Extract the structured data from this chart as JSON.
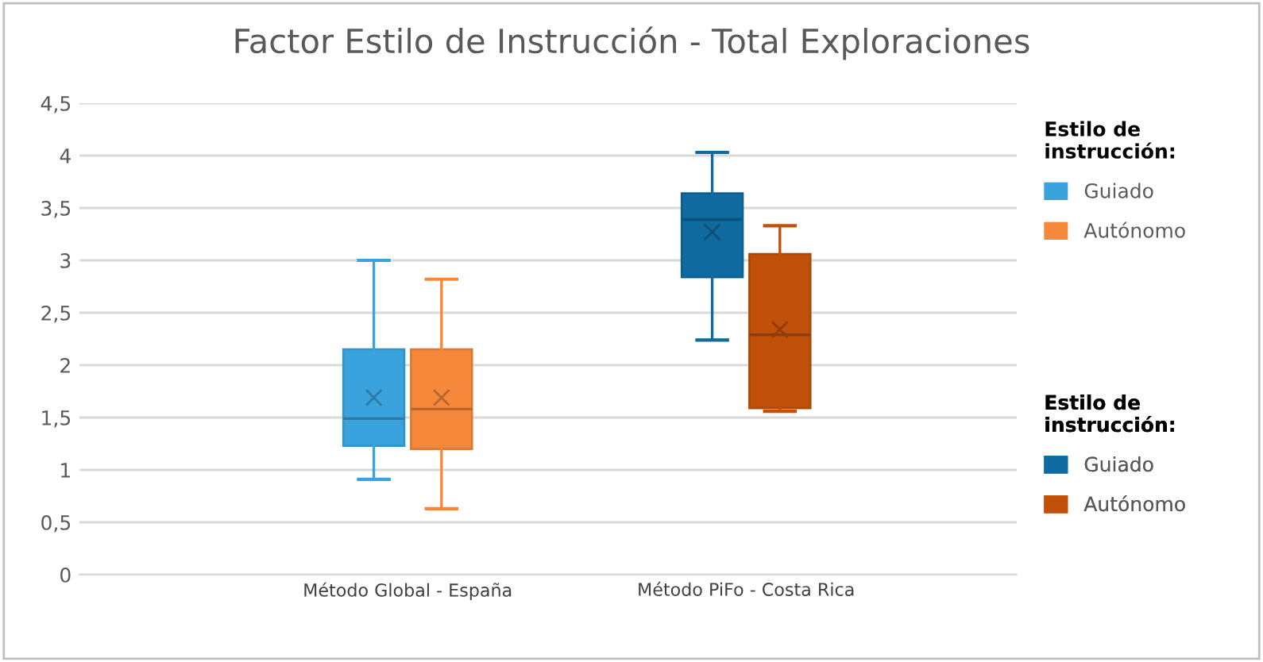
{
  "chart_data": {
    "type": "box",
    "title": "Factor Estilo de Instrucción - Total Exploraciones",
    "categories": [
      "Método Global - España",
      "Método PiFo - Costa Rica"
    ],
    "legend_title": "Estilo de instrucción:",
    "series": [
      {
        "name": "Guiado",
        "color": "#3aa3dd",
        "boxes": [
          {
            "low": 0.91,
            "q1": 1.23,
            "median": 1.49,
            "q3": 2.15,
            "high": 3.0,
            "mean": 1.69
          },
          null
        ]
      },
      {
        "name": "Autónomo",
        "color": "#f5883a",
        "boxes": [
          {
            "low": 0.63,
            "q1": 1.2,
            "median": 1.58,
            "q3": 2.15,
            "high": 2.82,
            "mean": 1.69
          },
          null
        ]
      },
      {
        "name": "Guiado",
        "color": "#0f6aa0",
        "boxes": [
          null,
          {
            "low": 2.24,
            "q1": 2.84,
            "median": 3.39,
            "q3": 3.64,
            "high": 4.03,
            "mean": 3.27
          }
        ]
      },
      {
        "name": "Autónomo",
        "color": "#c0500a",
        "boxes": [
          null,
          {
            "low": 1.56,
            "q1": 1.59,
            "median": 2.29,
            "q3": 3.06,
            "high": 3.33,
            "mean": 2.34
          }
        ]
      }
    ],
    "ylim": [
      0,
      4.5
    ],
    "yticks": [
      {
        "value": 0,
        "label": "0"
      },
      {
        "value": 0.5,
        "label": "0,5"
      },
      {
        "value": 1,
        "label": "1"
      },
      {
        "value": 1.5,
        "label": "1,5"
      },
      {
        "value": 2,
        "label": "2"
      },
      {
        "value": 2.5,
        "label": "2,5"
      },
      {
        "value": 3,
        "label": "3"
      },
      {
        "value": 3.5,
        "label": "3,5"
      },
      {
        "value": 4,
        "label": "4"
      },
      {
        "value": 4.5,
        "label": "4,5"
      }
    ],
    "grid": "y",
    "legend": "right"
  }
}
